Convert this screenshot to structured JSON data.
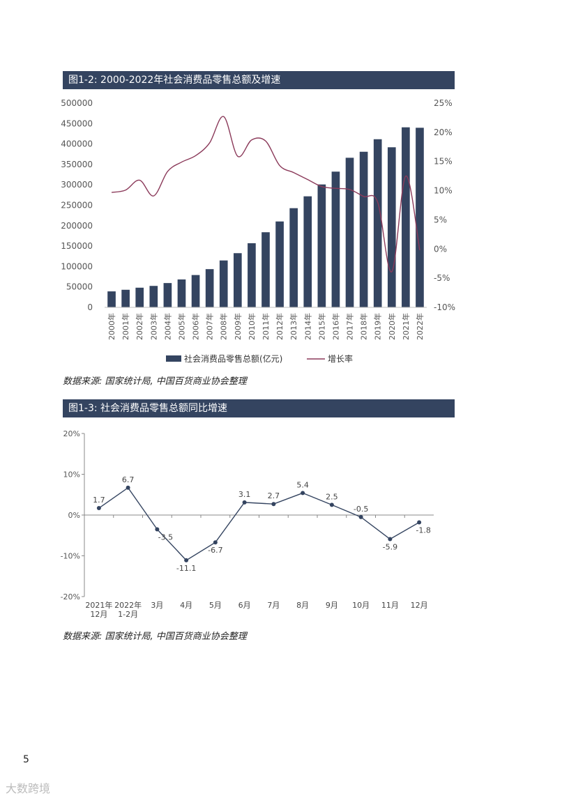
{
  "figure1": {
    "title": "图1-2: 2000-2022年社会消费品零售总额及增速",
    "source": "数据来源: 国家统计局, 中国百货商业协会整理",
    "chart_data": {
      "type": "bar+line",
      "categories": [
        "2000年",
        "2001年",
        "2002年",
        "2003年",
        "2004年",
        "2005年",
        "2006年",
        "2007年",
        "2008年",
        "2009年",
        "2010年",
        "2011年",
        "2012年",
        "2013年",
        "2014年",
        "2015年",
        "2016年",
        "2017年",
        "2018年",
        "2019年",
        "2020年",
        "2021年",
        "2022年"
      ],
      "left_axis": {
        "ylim": [
          0,
          500000
        ],
        "ticks": [
          "0",
          "50000",
          "100000",
          "150000",
          "200000",
          "250000",
          "300000",
          "350000",
          "400000",
          "450000",
          "500000"
        ]
      },
      "right_axis": {
        "ylim": [
          -10,
          25
        ],
        "ticks": [
          "-10%",
          "-5%",
          "0%",
          "5%",
          "10%",
          "15%",
          "20%",
          "25%"
        ]
      },
      "series": [
        {
          "name": "社会消费品零售总额(亿元)",
          "type": "bar",
          "axis": "left",
          "color": "#344460",
          "values": [
            39106,
            43055,
            48136,
            52516,
            59501,
            68353,
            79145,
            93572,
            114830,
            132678,
            156998,
            183919,
            210307,
            242843,
            271896,
            300931,
            332316,
            366262,
            380987,
            411649,
            391981,
            440823,
            439733
          ]
        },
        {
          "name": "增长率",
          "type": "line",
          "axis": "right",
          "color": "#8b3a5a",
          "values": [
            9.7,
            10.1,
            11.8,
            9.1,
            13.3,
            14.9,
            16.0,
            18.2,
            22.7,
            15.9,
            18.7,
            18.5,
            14.3,
            13.1,
            11.9,
            10.7,
            10.4,
            10.2,
            9.0,
            8.0,
            -3.9,
            12.5,
            -0.2
          ]
        }
      ],
      "legend_position": "bottom"
    }
  },
  "figure2": {
    "title": "图1-3: 社会消费品零售总额同比增速",
    "source": "数据来源: 国家统计局, 中国百货商业协会整理",
    "chart_data": {
      "type": "line",
      "categories": [
        [
          "2021年",
          "12月"
        ],
        [
          "2022年",
          "1-2月"
        ],
        [
          "3月"
        ],
        [
          "4月"
        ],
        [
          "5月"
        ],
        [
          "6月"
        ],
        [
          "7月"
        ],
        [
          "8月"
        ],
        [
          "9月"
        ],
        [
          "10月"
        ],
        [
          "11月"
        ],
        [
          "12月"
        ]
      ],
      "values": [
        1.7,
        6.7,
        -3.5,
        -11.1,
        -6.7,
        3.1,
        2.7,
        5.4,
        2.5,
        -0.5,
        -5.9,
        -1.8
      ],
      "labels": [
        "1.7",
        "6.7",
        "-3.5",
        "-11.1",
        "-6.7",
        "3.1",
        "2.7",
        "5.4",
        "2.5",
        "-0.5",
        "-5.9",
        "-1.8"
      ],
      "ylim": [
        -20,
        20
      ],
      "ticks": [
        "-20%",
        "-10%",
        "0%",
        "10%",
        "20%"
      ],
      "color": "#344460"
    }
  },
  "page_number": "5",
  "watermark": "大数跨境"
}
